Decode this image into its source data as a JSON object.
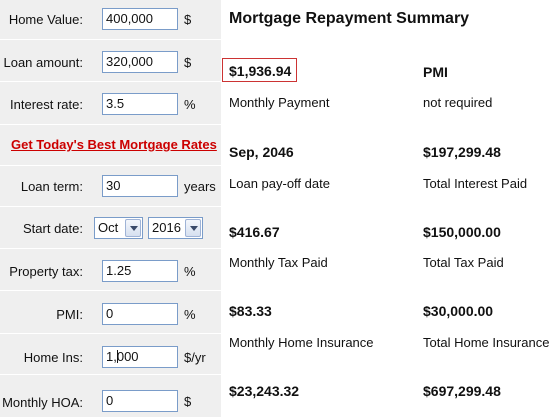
{
  "form": {
    "home_value": {
      "label": "Home Value:",
      "value": "400,000",
      "unit": "$"
    },
    "loan_amount": {
      "label": "Loan amount:",
      "value": "320,000",
      "unit": "$"
    },
    "interest_rate": {
      "label": "Interest rate:",
      "value": "3.5",
      "unit": "%"
    },
    "rates_link": "Get Today's Best Mortgage Rates",
    "loan_term": {
      "label": "Loan term:",
      "value": "30",
      "unit": "years"
    },
    "start_date": {
      "label": "Start date:",
      "month": "Oct",
      "year": "2016"
    },
    "property_tax": {
      "label": "Property tax:",
      "value": "1.25",
      "unit": "%"
    },
    "pmi": {
      "label": "PMI:",
      "value": "0",
      "unit": "%"
    },
    "home_ins": {
      "label": "Home Ins:",
      "value_before_cursor": "1,",
      "value_after_cursor": "000",
      "unit": "$/yr"
    },
    "monthly_hoa": {
      "label": "Monthly HOA:",
      "value": "0",
      "unit": "$"
    }
  },
  "summary": {
    "title": "Mortgage Repayment Summary",
    "monthly_payment": {
      "value": "$1,936.94",
      "caption": "Monthly Payment"
    },
    "pmi": {
      "value": "PMI",
      "caption": "not required"
    },
    "payoff_date": {
      "value": "Sep, 2046",
      "caption": "Loan pay-off date"
    },
    "total_interest": {
      "value": "$197,299.48",
      "caption": "Total Interest Paid"
    },
    "monthly_tax": {
      "value": "$416.67",
      "caption": "Monthly Tax Paid"
    },
    "total_tax": {
      "value": "$150,000.00",
      "caption": "Total Tax Paid"
    },
    "monthly_insurance": {
      "value": "$83.33",
      "caption": "Monthly Home Insurance"
    },
    "total_insurance": {
      "value": "$30,000.00",
      "caption": "Total Home Insurance"
    },
    "row5_left": {
      "value": "$23,243.32"
    },
    "row5_right": {
      "value": "$697,299.48"
    }
  }
}
